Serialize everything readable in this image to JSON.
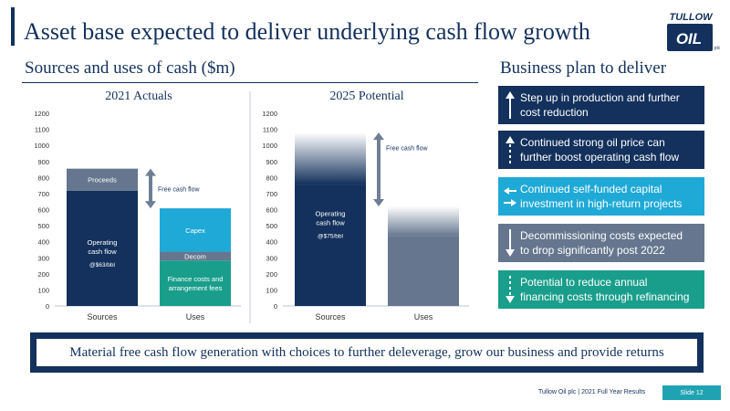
{
  "header": {
    "title": "Asset base expected to deliver underlying cash flow growth",
    "logo_text": "TULLOW",
    "logo_mark": "OIL",
    "logo_small": "plc"
  },
  "left_section": {
    "subtitle": "Sources and uses of cash ($m)"
  },
  "right_section": {
    "subtitle": "Business plan to deliver",
    "cards": [
      {
        "text_line1": "Step up in production and further",
        "text_line2": "cost reduction",
        "color": "#13315c",
        "icon": "arrow-up-icon"
      },
      {
        "text_line1": "Continued strong oil price can",
        "text_line2": "further boost operating cash flow",
        "color": "#13315c",
        "icon": "dotted-arrow-up-icon"
      },
      {
        "text_line1": "Continued self-funded capital",
        "text_line2": "investment in high-return projects",
        "color": "#1fa9d6",
        "icon": "left-right-arrows-icon"
      },
      {
        "text_line1": "Decommissioning costs expected",
        "text_line2": "to drop significantly post 2022",
        "color": "#65768e",
        "icon": "arrow-down-icon"
      },
      {
        "text_line1": "Potential to reduce annual",
        "text_line2": "financing costs through refinancing",
        "color": "#1a9e8c",
        "icon": "dotted-arrow-down-icon"
      }
    ]
  },
  "banner": {
    "text": "Material free cash flow generation with choices to further deleverage, grow our business and provide returns"
  },
  "footer": {
    "company": "Tullow Oil plc | 2021 Full Year Results",
    "slide": "Slide 12"
  },
  "colors": {
    "navy": "#13315c",
    "slate": "#65768e",
    "sky": "#1fa9d6",
    "teal": "#1a9e8c",
    "grey": "#7b8a9e"
  },
  "chart_data": [
    {
      "type": "bar",
      "title": "2021 Actuals",
      "categories": [
        "Sources",
        "Uses"
      ],
      "ylim": [
        0,
        1200
      ],
      "yticks": [
        0,
        100,
        200,
        300,
        400,
        500,
        600,
        700,
        800,
        900,
        1000,
        1100,
        1200
      ],
      "stacked": true,
      "bars": [
        {
          "category": "Sources",
          "segments": [
            {
              "label": "Operating cash flow",
              "sublabel": "@$63/bbl",
              "from": 0,
              "to": 718,
              "color": "#13315c"
            },
            {
              "label": "Proceeds",
              "from": 718,
              "to": 855,
              "color": "#65768e"
            }
          ]
        },
        {
          "category": "Uses",
          "segments": [
            {
              "label": "Finance costs and arrangement fees",
              "from": 0,
              "to": 283,
              "color": "#1a9e8c"
            },
            {
              "label": "Decom",
              "from": 283,
              "to": 338,
              "color": "#65768e"
            },
            {
              "label": "Capex",
              "from": 338,
              "to": 608,
              "color": "#1fa9d6"
            }
          ]
        }
      ],
      "annotation": {
        "label": "Free cash flow",
        "from": 608,
        "to": 855
      }
    },
    {
      "type": "bar",
      "title": "2025 Potential",
      "categories": [
        "Sources",
        "Uses"
      ],
      "ylim": [
        0,
        1200
      ],
      "yticks": [
        0,
        100,
        200,
        300,
        400,
        500,
        600,
        700,
        800,
        900,
        1000,
        1100,
        1200
      ],
      "stacked": true,
      "bars": [
        {
          "category": "Sources",
          "segments": [
            {
              "label": "Operating cash flow",
              "sublabel": "@$75/bbl",
              "from": 0,
              "to": 1080,
              "color": "#13315c",
              "gradient_top": true
            }
          ]
        },
        {
          "category": "Uses",
          "segments": [
            {
              "label": "",
              "from": 0,
              "to": 620,
              "color": "#65768e",
              "gradient_top": true
            }
          ]
        }
      ],
      "annotation": {
        "label": "Free cash flow",
        "from": 620,
        "to": 1080
      }
    }
  ]
}
